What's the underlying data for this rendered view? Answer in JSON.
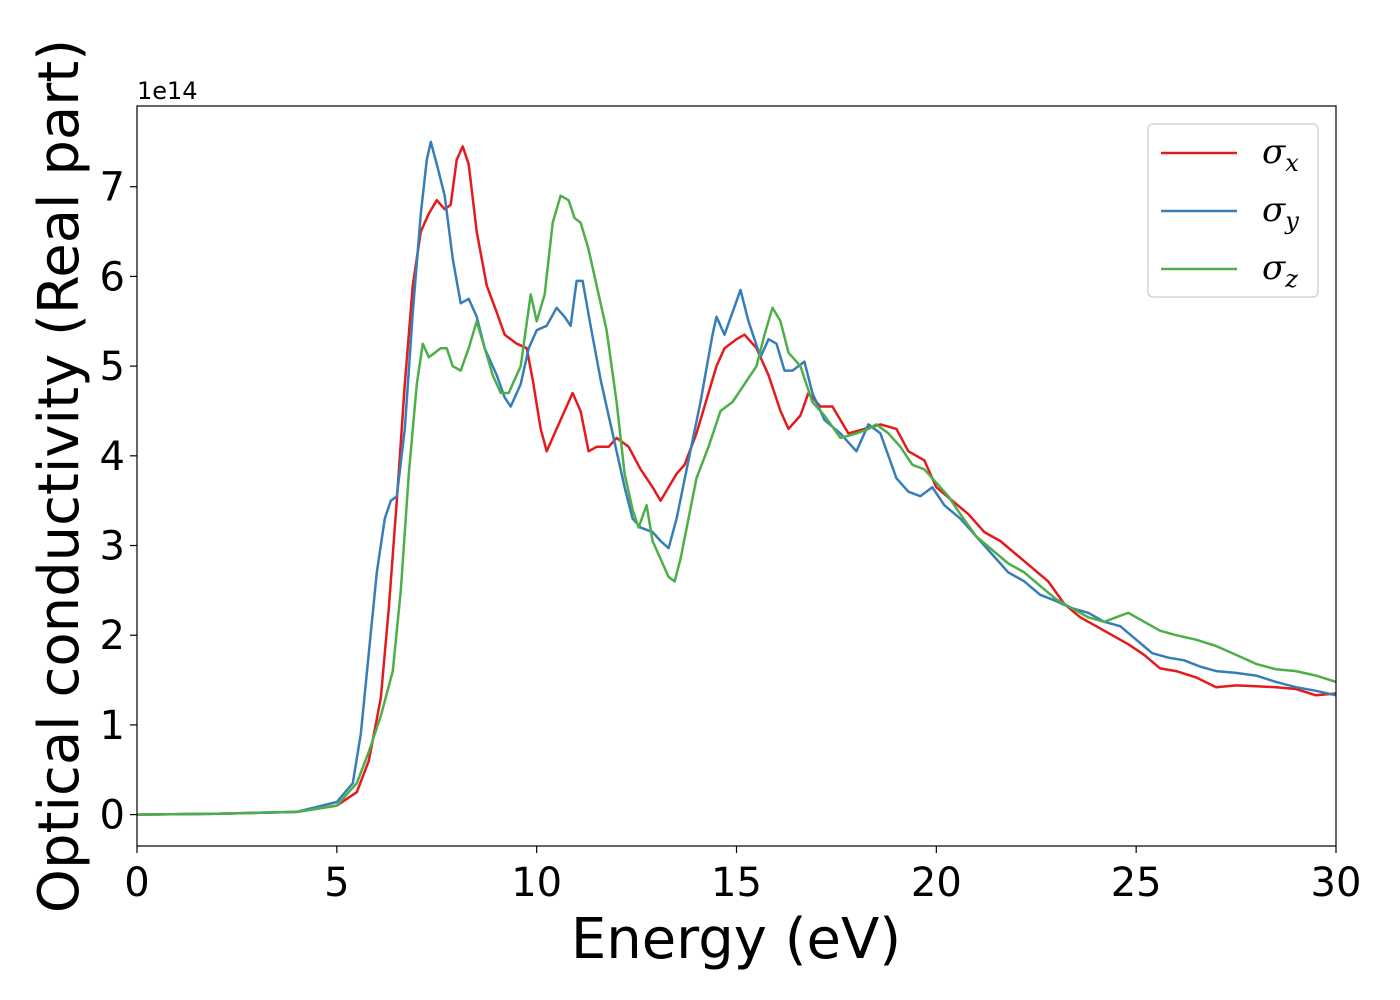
{
  "chart_data": {
    "type": "line",
    "xlabel": "Energy (eV)",
    "ylabel": "Optical conductivity (Real part)",
    "y_offset_label": "1e14",
    "xlim": [
      0,
      30
    ],
    "ylim": [
      -0.35,
      7.9
    ],
    "x_ticks": [
      0,
      5,
      10,
      15,
      20,
      25,
      30
    ],
    "x_tick_labels": [
      "0",
      "5",
      "10",
      "15",
      "20",
      "25",
      "30"
    ],
    "y_ticks": [
      0,
      1,
      2,
      3,
      4,
      5,
      6,
      7
    ],
    "y_tick_labels": [
      "0",
      "1",
      "2",
      "3",
      "4",
      "5",
      "6",
      "7"
    ],
    "grid": false,
    "legend_position": "top-right",
    "series": [
      {
        "name": "σx",
        "legend_symbol": "σ",
        "legend_subscript": "x",
        "color": "#e41a1c",
        "points": [
          [
            0,
            0
          ],
          [
            2,
            0.01
          ],
          [
            4,
            0.03
          ],
          [
            5,
            0.1
          ],
          [
            5.5,
            0.25
          ],
          [
            5.8,
            0.6
          ],
          [
            6.1,
            1.3
          ],
          [
            6.3,
            2.3
          ],
          [
            6.5,
            3.5
          ],
          [
            6.7,
            4.8
          ],
          [
            6.9,
            5.9
          ],
          [
            7.1,
            6.5
          ],
          [
            7.3,
            6.7
          ],
          [
            7.5,
            6.85
          ],
          [
            7.7,
            6.75
          ],
          [
            7.85,
            6.8
          ],
          [
            8.0,
            7.3
          ],
          [
            8.15,
            7.45
          ],
          [
            8.3,
            7.25
          ],
          [
            8.5,
            6.5
          ],
          [
            8.75,
            5.9
          ],
          [
            9.0,
            5.6
          ],
          [
            9.2,
            5.35
          ],
          [
            9.5,
            5.25
          ],
          [
            9.75,
            5.2
          ],
          [
            9.9,
            4.85
          ],
          [
            10.1,
            4.3
          ],
          [
            10.25,
            4.05
          ],
          [
            10.5,
            4.3
          ],
          [
            10.75,
            4.55
          ],
          [
            10.9,
            4.7
          ],
          [
            11.1,
            4.5
          ],
          [
            11.3,
            4.05
          ],
          [
            11.5,
            4.1
          ],
          [
            11.8,
            4.1
          ],
          [
            12.0,
            4.2
          ],
          [
            12.3,
            4.1
          ],
          [
            12.6,
            3.85
          ],
          [
            12.9,
            3.65
          ],
          [
            13.1,
            3.5
          ],
          [
            13.3,
            3.65
          ],
          [
            13.5,
            3.8
          ],
          [
            13.7,
            3.9
          ],
          [
            14.0,
            4.25
          ],
          [
            14.3,
            4.7
          ],
          [
            14.5,
            5.0
          ],
          [
            14.7,
            5.2
          ],
          [
            15.0,
            5.3
          ],
          [
            15.2,
            5.35
          ],
          [
            15.5,
            5.2
          ],
          [
            15.8,
            4.9
          ],
          [
            16.1,
            4.5
          ],
          [
            16.3,
            4.3
          ],
          [
            16.6,
            4.45
          ],
          [
            16.8,
            4.7
          ],
          [
            17.1,
            4.55
          ],
          [
            17.4,
            4.55
          ],
          [
            17.8,
            4.25
          ],
          [
            18.2,
            4.3
          ],
          [
            18.6,
            4.35
          ],
          [
            19.0,
            4.3
          ],
          [
            19.3,
            4.05
          ],
          [
            19.7,
            3.95
          ],
          [
            20.0,
            3.65
          ],
          [
            20.4,
            3.5
          ],
          [
            20.8,
            3.35
          ],
          [
            21.2,
            3.15
          ],
          [
            21.6,
            3.05
          ],
          [
            22.0,
            2.9
          ],
          [
            22.4,
            2.75
          ],
          [
            22.8,
            2.6
          ],
          [
            23.2,
            2.35
          ],
          [
            23.6,
            2.2
          ],
          [
            24.0,
            2.1
          ],
          [
            24.4,
            2.0
          ],
          [
            24.8,
            1.9
          ],
          [
            25.2,
            1.78
          ],
          [
            25.6,
            1.63
          ],
          [
            26.0,
            1.6
          ],
          [
            26.5,
            1.53
          ],
          [
            27.0,
            1.42
          ],
          [
            27.5,
            1.44
          ],
          [
            28.0,
            1.43
          ],
          [
            28.5,
            1.42
          ],
          [
            29.0,
            1.4
          ],
          [
            29.5,
            1.33
          ],
          [
            30.0,
            1.35
          ]
        ]
      },
      {
        "name": "σy",
        "legend_symbol": "σ",
        "legend_subscript": "y",
        "color": "#377eb8",
        "points": [
          [
            0,
            0
          ],
          [
            2,
            0.01
          ],
          [
            4,
            0.03
          ],
          [
            5,
            0.14
          ],
          [
            5.4,
            0.35
          ],
          [
            5.6,
            0.9
          ],
          [
            5.8,
            1.8
          ],
          [
            6.0,
            2.7
          ],
          [
            6.2,
            3.3
          ],
          [
            6.35,
            3.5
          ],
          [
            6.5,
            3.55
          ],
          [
            6.7,
            4.3
          ],
          [
            6.9,
            5.6
          ],
          [
            7.1,
            6.7
          ],
          [
            7.25,
            7.3
          ],
          [
            7.35,
            7.5
          ],
          [
            7.5,
            7.25
          ],
          [
            7.7,
            6.9
          ],
          [
            7.9,
            6.2
          ],
          [
            8.1,
            5.7
          ],
          [
            8.3,
            5.75
          ],
          [
            8.5,
            5.55
          ],
          [
            8.7,
            5.2
          ],
          [
            9.0,
            4.9
          ],
          [
            9.2,
            4.65
          ],
          [
            9.35,
            4.55
          ],
          [
            9.6,
            4.8
          ],
          [
            9.8,
            5.2
          ],
          [
            10.0,
            5.4
          ],
          [
            10.25,
            5.45
          ],
          [
            10.5,
            5.65
          ],
          [
            10.7,
            5.55
          ],
          [
            10.85,
            5.45
          ],
          [
            11.0,
            5.95
          ],
          [
            11.15,
            5.95
          ],
          [
            11.35,
            5.45
          ],
          [
            11.6,
            4.85
          ],
          [
            11.8,
            4.45
          ],
          [
            12.0,
            4.05
          ],
          [
            12.2,
            3.65
          ],
          [
            12.4,
            3.3
          ],
          [
            12.6,
            3.2
          ],
          [
            12.9,
            3.15
          ],
          [
            13.1,
            3.05
          ],
          [
            13.3,
            2.97
          ],
          [
            13.5,
            3.3
          ],
          [
            13.8,
            3.95
          ],
          [
            14.1,
            4.6
          ],
          [
            14.4,
            5.35
          ],
          [
            14.5,
            5.55
          ],
          [
            14.7,
            5.35
          ],
          [
            14.9,
            5.6
          ],
          [
            15.1,
            5.85
          ],
          [
            15.3,
            5.5
          ],
          [
            15.6,
            5.1
          ],
          [
            15.8,
            5.3
          ],
          [
            16.0,
            5.25
          ],
          [
            16.2,
            4.95
          ],
          [
            16.4,
            4.95
          ],
          [
            16.7,
            5.05
          ],
          [
            16.9,
            4.7
          ],
          [
            17.2,
            4.4
          ],
          [
            17.6,
            4.25
          ],
          [
            18.0,
            4.05
          ],
          [
            18.3,
            4.35
          ],
          [
            18.6,
            4.25
          ],
          [
            18.8,
            4.0
          ],
          [
            19.0,
            3.75
          ],
          [
            19.3,
            3.6
          ],
          [
            19.6,
            3.55
          ],
          [
            19.9,
            3.65
          ],
          [
            20.2,
            3.45
          ],
          [
            20.6,
            3.3
          ],
          [
            21.0,
            3.1
          ],
          [
            21.4,
            2.9
          ],
          [
            21.8,
            2.7
          ],
          [
            22.2,
            2.6
          ],
          [
            22.6,
            2.45
          ],
          [
            23.0,
            2.38
          ],
          [
            23.4,
            2.3
          ],
          [
            23.8,
            2.25
          ],
          [
            24.2,
            2.15
          ],
          [
            24.6,
            2.1
          ],
          [
            25.0,
            1.95
          ],
          [
            25.4,
            1.8
          ],
          [
            25.8,
            1.75
          ],
          [
            26.2,
            1.72
          ],
          [
            26.6,
            1.65
          ],
          [
            27.0,
            1.6
          ],
          [
            27.5,
            1.58
          ],
          [
            28.0,
            1.55
          ],
          [
            28.5,
            1.48
          ],
          [
            29.0,
            1.42
          ],
          [
            29.5,
            1.38
          ],
          [
            30.0,
            1.33
          ]
        ]
      },
      {
        "name": "σz",
        "legend_symbol": "σ",
        "legend_subscript": "z",
        "color": "#4daf4a",
        "points": [
          [
            0,
            0
          ],
          [
            2,
            0.01
          ],
          [
            4,
            0.03
          ],
          [
            5,
            0.1
          ],
          [
            5.5,
            0.35
          ],
          [
            5.8,
            0.7
          ],
          [
            6.1,
            1.1
          ],
          [
            6.4,
            1.6
          ],
          [
            6.6,
            2.5
          ],
          [
            6.8,
            3.8
          ],
          [
            7.0,
            4.8
          ],
          [
            7.15,
            5.25
          ],
          [
            7.3,
            5.1
          ],
          [
            7.45,
            5.15
          ],
          [
            7.6,
            5.2
          ],
          [
            7.75,
            5.2
          ],
          [
            7.9,
            5.0
          ],
          [
            8.1,
            4.95
          ],
          [
            8.3,
            5.2
          ],
          [
            8.5,
            5.5
          ],
          [
            8.7,
            5.2
          ],
          [
            8.9,
            4.9
          ],
          [
            9.1,
            4.7
          ],
          [
            9.3,
            4.7
          ],
          [
            9.6,
            5.0
          ],
          [
            9.85,
            5.8
          ],
          [
            10.0,
            5.5
          ],
          [
            10.2,
            5.8
          ],
          [
            10.4,
            6.6
          ],
          [
            10.6,
            6.9
          ],
          [
            10.8,
            6.85
          ],
          [
            10.95,
            6.65
          ],
          [
            11.1,
            6.6
          ],
          [
            11.3,
            6.3
          ],
          [
            11.5,
            5.9
          ],
          [
            11.75,
            5.4
          ],
          [
            12.0,
            4.6
          ],
          [
            12.2,
            3.8
          ],
          [
            12.4,
            3.4
          ],
          [
            12.55,
            3.2
          ],
          [
            12.75,
            3.45
          ],
          [
            12.9,
            3.05
          ],
          [
            13.1,
            2.85
          ],
          [
            13.3,
            2.65
          ],
          [
            13.45,
            2.6
          ],
          [
            13.6,
            2.85
          ],
          [
            13.8,
            3.3
          ],
          [
            14.0,
            3.75
          ],
          [
            14.3,
            4.1
          ],
          [
            14.6,
            4.5
          ],
          [
            14.9,
            4.6
          ],
          [
            15.2,
            4.8
          ],
          [
            15.5,
            5.0
          ],
          [
            15.7,
            5.35
          ],
          [
            15.9,
            5.65
          ],
          [
            16.1,
            5.5
          ],
          [
            16.3,
            5.15
          ],
          [
            16.6,
            5.0
          ],
          [
            16.9,
            4.6
          ],
          [
            17.2,
            4.45
          ],
          [
            17.6,
            4.2
          ],
          [
            18.0,
            4.25
          ],
          [
            18.3,
            4.3
          ],
          [
            18.5,
            4.35
          ],
          [
            18.8,
            4.25
          ],
          [
            19.1,
            4.1
          ],
          [
            19.4,
            3.9
          ],
          [
            19.7,
            3.85
          ],
          [
            20.0,
            3.7
          ],
          [
            20.3,
            3.55
          ],
          [
            20.6,
            3.35
          ],
          [
            21.0,
            3.1
          ],
          [
            21.4,
            2.95
          ],
          [
            21.8,
            2.8
          ],
          [
            22.2,
            2.7
          ],
          [
            22.6,
            2.55
          ],
          [
            23.0,
            2.4
          ],
          [
            23.4,
            2.3
          ],
          [
            23.8,
            2.2
          ],
          [
            24.2,
            2.15
          ],
          [
            24.5,
            2.2
          ],
          [
            24.8,
            2.25
          ],
          [
            25.2,
            2.15
          ],
          [
            25.6,
            2.05
          ],
          [
            26.0,
            2.0
          ],
          [
            26.5,
            1.95
          ],
          [
            27.0,
            1.88
          ],
          [
            27.5,
            1.78
          ],
          [
            28.0,
            1.68
          ],
          [
            28.5,
            1.62
          ],
          [
            29.0,
            1.6
          ],
          [
            29.5,
            1.55
          ],
          [
            30.0,
            1.48
          ]
        ]
      }
    ]
  }
}
